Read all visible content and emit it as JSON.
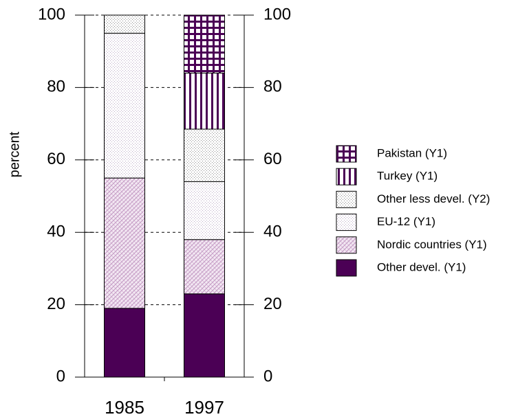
{
  "chart_data": {
    "type": "stacked_bar",
    "y_label": "percent",
    "categories": [
      "1985",
      "1997"
    ],
    "series": [
      {
        "name": "Other devel. (Y1)",
        "color": "#4b0055",
        "pattern": "solid",
        "values": [
          19,
          23
        ]
      },
      {
        "name": "Nordic countries (Y1)",
        "color": "#c8a0c8",
        "pattern": "hatch",
        "values": [
          36,
          15
        ]
      },
      {
        "name": "EU-12 (Y1)",
        "color": "#b9a8c4",
        "pattern": "dots",
        "values": [
          40,
          16
        ]
      },
      {
        "name": "Other less devel. (Y2)",
        "color": "#8a8a8a",
        "pattern": "dots",
        "axis": "y2",
        "values": [
          5,
          14.5
        ]
      },
      {
        "name": "Turkey (Y1)",
        "color": "#4b0055",
        "pattern": "vlines",
        "values": [
          0,
          15.5
        ]
      },
      {
        "name": "Pakistan (Y1)",
        "color": "#4b0055",
        "pattern": "grid",
        "values": [
          0,
          16
        ]
      }
    ],
    "ylim": [
      0,
      100
    ],
    "yticks": [
      0,
      20,
      40,
      60,
      80,
      100
    ],
    "y2lim": [
      0,
      100
    ],
    "y2ticks": [
      0,
      20,
      40,
      60,
      80,
      100
    ],
    "grid": true,
    "legend": "right"
  }
}
